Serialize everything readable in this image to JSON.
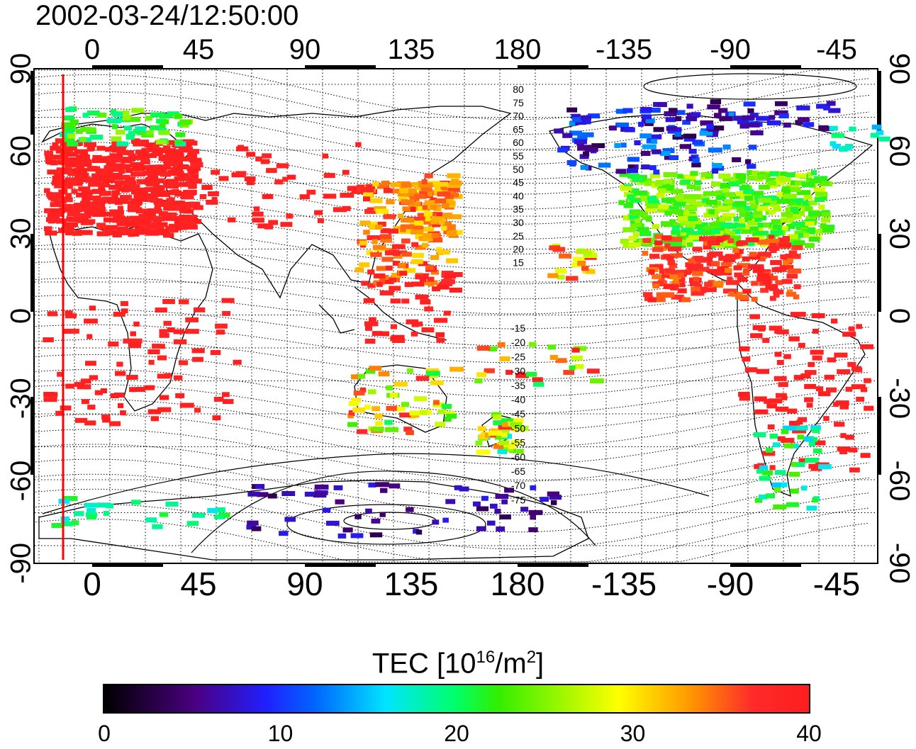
{
  "title": "2002-03-24/12:50:00",
  "lon_tick_labels": [
    "0",
    "45",
    "90",
    "135",
    "180",
    "-135",
    "-90",
    "-45"
  ],
  "lat_tick_labels": [
    "90",
    "60",
    "30",
    "0",
    "-30",
    "-60",
    "-90"
  ],
  "contour_labels_north": [
    "80",
    "75",
    "70",
    "65",
    "60",
    "55",
    "50",
    "45",
    "40",
    "35",
    "30",
    "25",
    "20",
    "15"
  ],
  "contour_labels_south": [
    "-15",
    "-20",
    "-25",
    "-30",
    "-35",
    "-40",
    "-45",
    "-50",
    "-55",
    "-60",
    "-65",
    "-70",
    "-75"
  ],
  "colorbar": {
    "title_prefix": "TEC  [10",
    "title_exp": "16",
    "title_mid": "/m",
    "title_exp2": "2",
    "title_suffix": "]",
    "min": 0,
    "max": 40,
    "tick_labels": [
      "0",
      "10",
      "20",
      "30",
      "40"
    ],
    "tick_values": [
      0,
      10,
      20,
      30,
      40
    ]
  },
  "colors": {
    "high_tec": "#ff1e1e",
    "frame": "#000000",
    "marker_line": "#ff0000"
  }
}
